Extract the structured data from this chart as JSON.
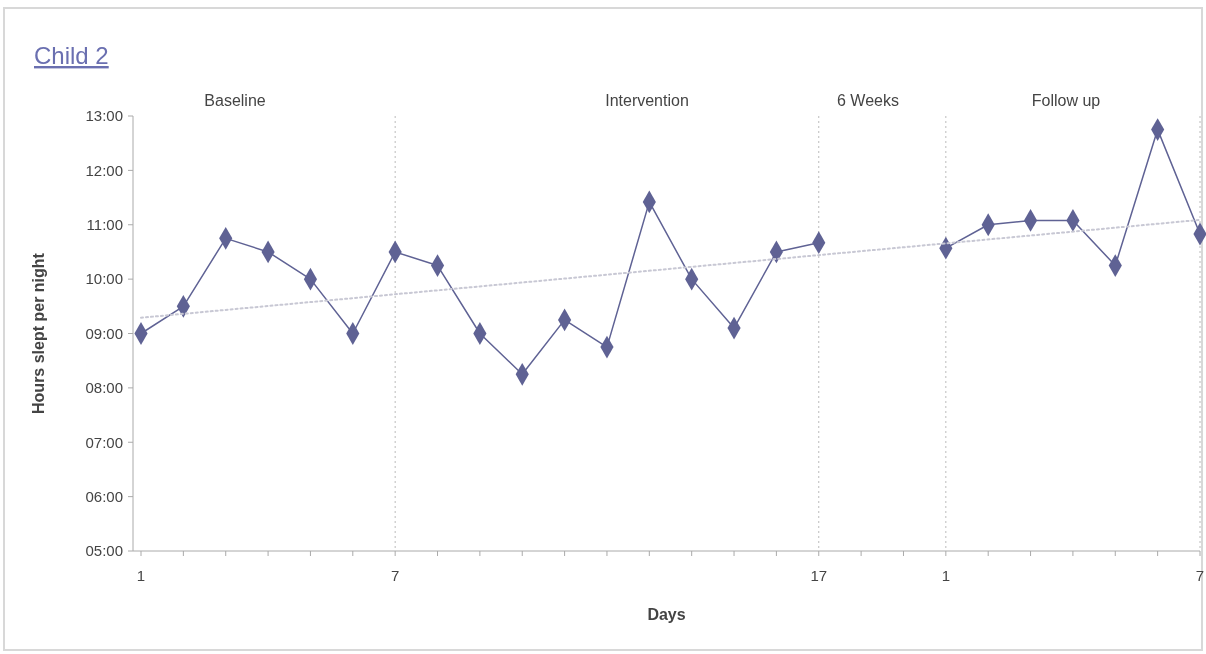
{
  "chart_data": {
    "type": "line",
    "title": "Child 2",
    "xlabel": "Days",
    "ylabel": "Hours slept per night",
    "annotations": [
      "Baseline",
      "Intervention",
      "6 Weeks",
      "Follow up"
    ],
    "categories": [
      "1",
      null,
      null,
      null,
      null,
      null,
      "7",
      null,
      null,
      null,
      null,
      null,
      null,
      null,
      null,
      null,
      "17",
      null,
      null,
      "1",
      null,
      null,
      null,
      null,
      null,
      "7"
    ],
    "series": [
      {
        "color": "#5f6294",
        "marker": "diamond",
        "line_style": "solid",
        "values": [
          9.0,
          9.5,
          10.75,
          10.5,
          10.0,
          9.0,
          10.5,
          10.25,
          9.0,
          8.25,
          9.25,
          8.75,
          11.42,
          10.0,
          9.1,
          10.5,
          10.67,
          null,
          null,
          10.57,
          11.0,
          11.08,
          11.08,
          10.25,
          12.75,
          10.83
        ]
      },
      {
        "color": "#c8c8d4",
        "marker": "none",
        "line_style": "dotted",
        "values": [
          9.29,
          null,
          null,
          null,
          null,
          null,
          null,
          null,
          null,
          null,
          null,
          null,
          null,
          null,
          null,
          null,
          null,
          null,
          null,
          null,
          null,
          null,
          null,
          null,
          null,
          11.09
        ]
      }
    ],
    "ylim": [
      5,
      13
    ],
    "yticks": [
      {
        "value": 5,
        "label": "05:00"
      },
      {
        "value": 6,
        "label": "06:00"
      },
      {
        "value": 7,
        "label": "07:00"
      },
      {
        "value": 8,
        "label": "08:00"
      },
      {
        "value": 9,
        "label": "09:00"
      },
      {
        "value": 10,
        "label": "10:00"
      },
      {
        "value": 11,
        "label": "11:00"
      },
      {
        "value": 12,
        "label": "12:00"
      },
      {
        "value": 13,
        "label": "13:00"
      }
    ],
    "grid": "x"
  }
}
